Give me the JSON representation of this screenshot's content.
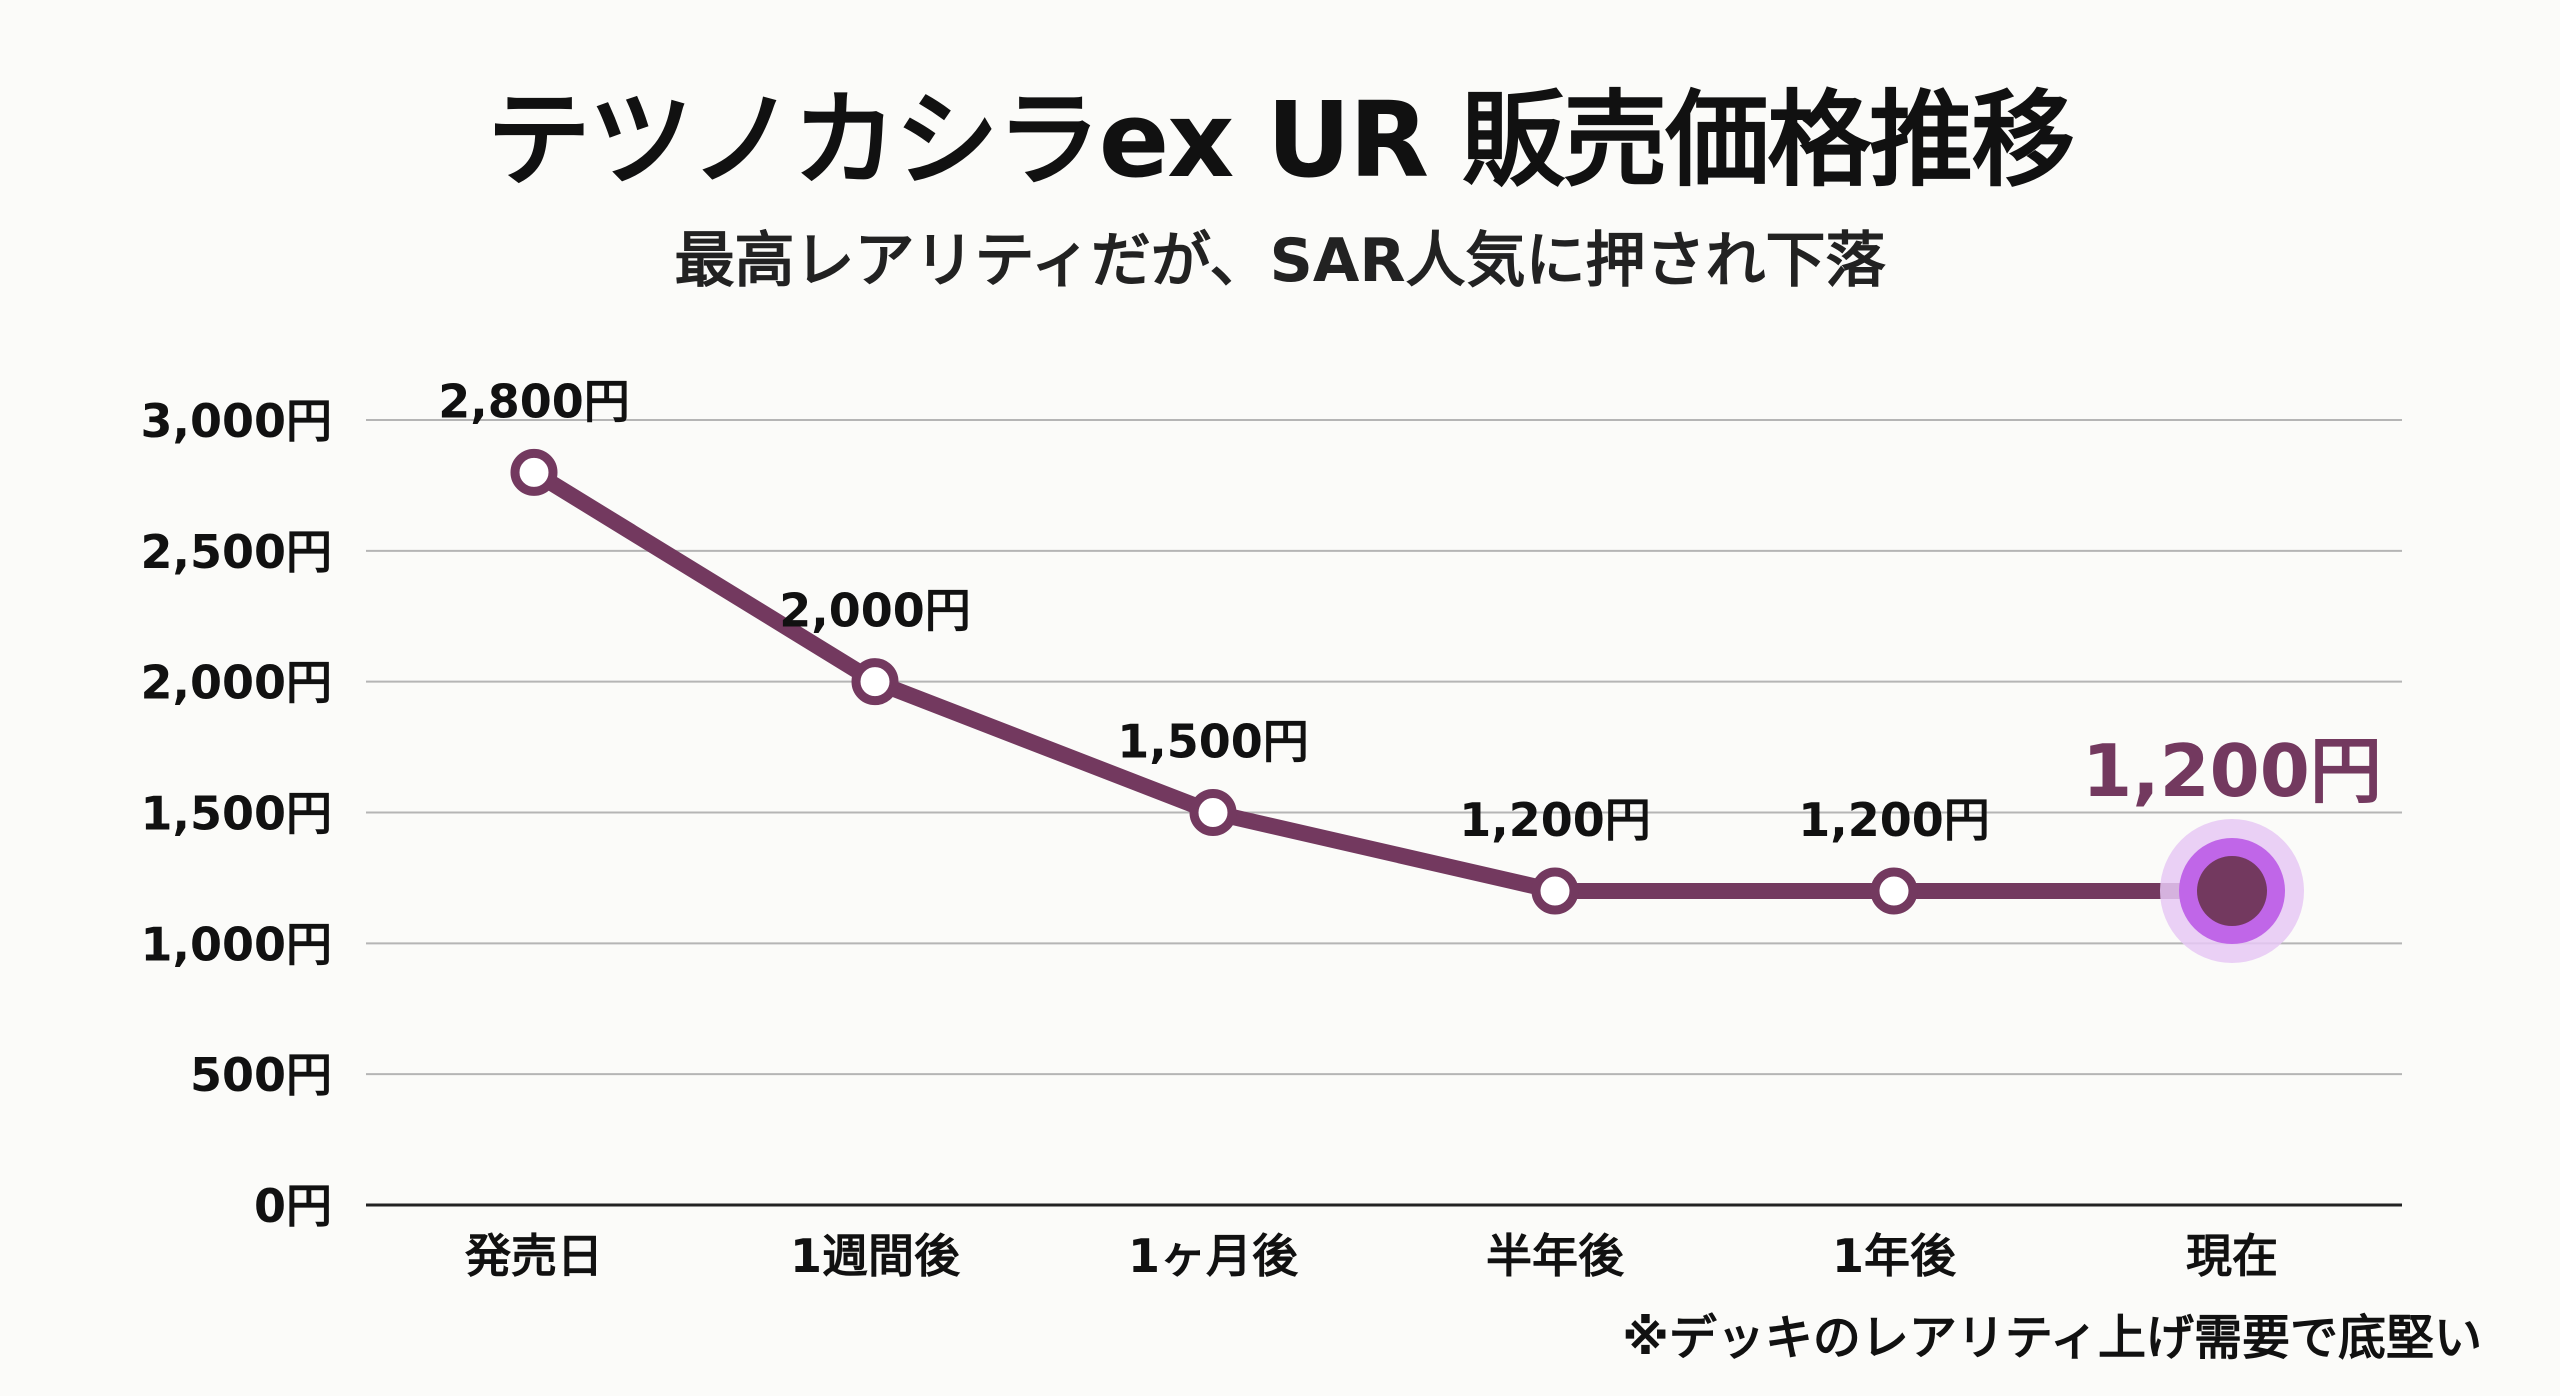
{
  "title": "テツノカシラex UR 販売価格推移",
  "subtitle": "最高レアリティだが、SAR人気に押され下落",
  "footnote": "※デッキのレアリティ上げ需要で底堅い",
  "chart_data": {
    "type": "line",
    "categories": [
      "発売日",
      "1週間後",
      "1ヶ月後",
      "半年後",
      "1年後",
      "現在"
    ],
    "values": [
      2800,
      2000,
      1500,
      1200,
      1200,
      1200
    ],
    "data_labels": [
      "2,800円",
      "2,000円",
      "1,500円",
      "1,200円",
      "1,200円",
      "1,200円"
    ],
    "ylim": [
      0,
      3000
    ],
    "yticks": [
      0,
      500,
      1000,
      1500,
      2000,
      2500,
      3000
    ],
    "ytick_labels": [
      "0円",
      "500円",
      "1,000円",
      "1,500円",
      "2,000円",
      "2,500円",
      "3,000円"
    ],
    "grid": true,
    "highlight_index": 5,
    "colors": {
      "line": "#73395f",
      "highlight_ring": "#c066e8",
      "highlight_glow": "#e6c8f5",
      "grid": "#b5b5b5"
    }
  }
}
